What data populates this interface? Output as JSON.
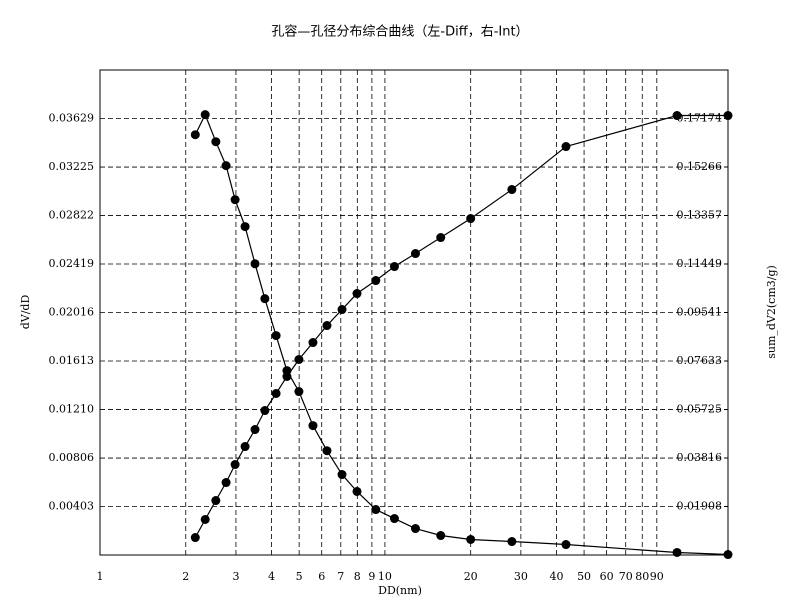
{
  "chart_data": {
    "type": "line",
    "title": "孔容—孔径分布综合曲线（左-Diff，右-Int）",
    "x_label": "DD(nm)",
    "y_label": "dV/dD",
    "y2_label": "sum_dV2(cm3/g)",
    "xscale": "log",
    "grid": true,
    "markers": true,
    "x": [
      2.16,
      2.34,
      2.55,
      2.77,
      2.98,
      3.23,
      3.5,
      3.79,
      4.15,
      4.53,
      4.99,
      5.59,
      6.26,
      7.07,
      7.98,
      9.29,
      10.8,
      12.8,
      15.7,
      20.0,
      27.9,
      43.2,
      106,
      160
    ],
    "series": [
      {
        "color": "#000000",
        "values": [
          0.03494,
          0.03661,
          0.03436,
          0.03237,
          0.02954,
          0.0273,
          0.02421,
          0.02131,
          0.01824,
          0.01533,
          0.01359,
          0.01076,
          0.00867,
          0.00669,
          0.00528,
          0.00378,
          0.00303,
          0.0022,
          0.00162,
          0.00129,
          0.00112,
          0.00087,
          0.00021,
          4e-05
        ]
      },
      {
        "color": "#000000",
        "axis": "y2",
        "values": [
          0.00688,
          0.01397,
          0.02144,
          0.02852,
          0.0356,
          0.04268,
          0.04937,
          0.05685,
          0.06354,
          0.07023,
          0.07692,
          0.0836,
          0.09029,
          0.09658,
          0.10288,
          0.10799,
          0.1135,
          0.11861,
          0.12491,
          0.13238,
          0.14379,
          0.16071,
          0.17291,
          0.17291
        ]
      }
    ],
    "xlim": [
      1,
      160
    ],
    "xticks": [
      1,
      2,
      3,
      4,
      5,
      6,
      7,
      8,
      9,
      10,
      20,
      30,
      40,
      50,
      60,
      70,
      80,
      90
    ],
    "ylim": [
      0,
      0.04032
    ],
    "yticks": [
      0.00403,
      0.00806,
      {
        "value": 0.0121,
        "label": "0.01210"
      },
      0.01613,
      0.02016,
      0.02419,
      0.02822,
      0.03225,
      0.03629
    ],
    "y2lim": [
      0,
      0.19082
    ],
    "y2ticks": [
      0.01908,
      0.03816,
      0.05725,
      0.07633,
      0.09541,
      0.11449,
      0.13357,
      0.15266,
      0.17174
    ]
  }
}
